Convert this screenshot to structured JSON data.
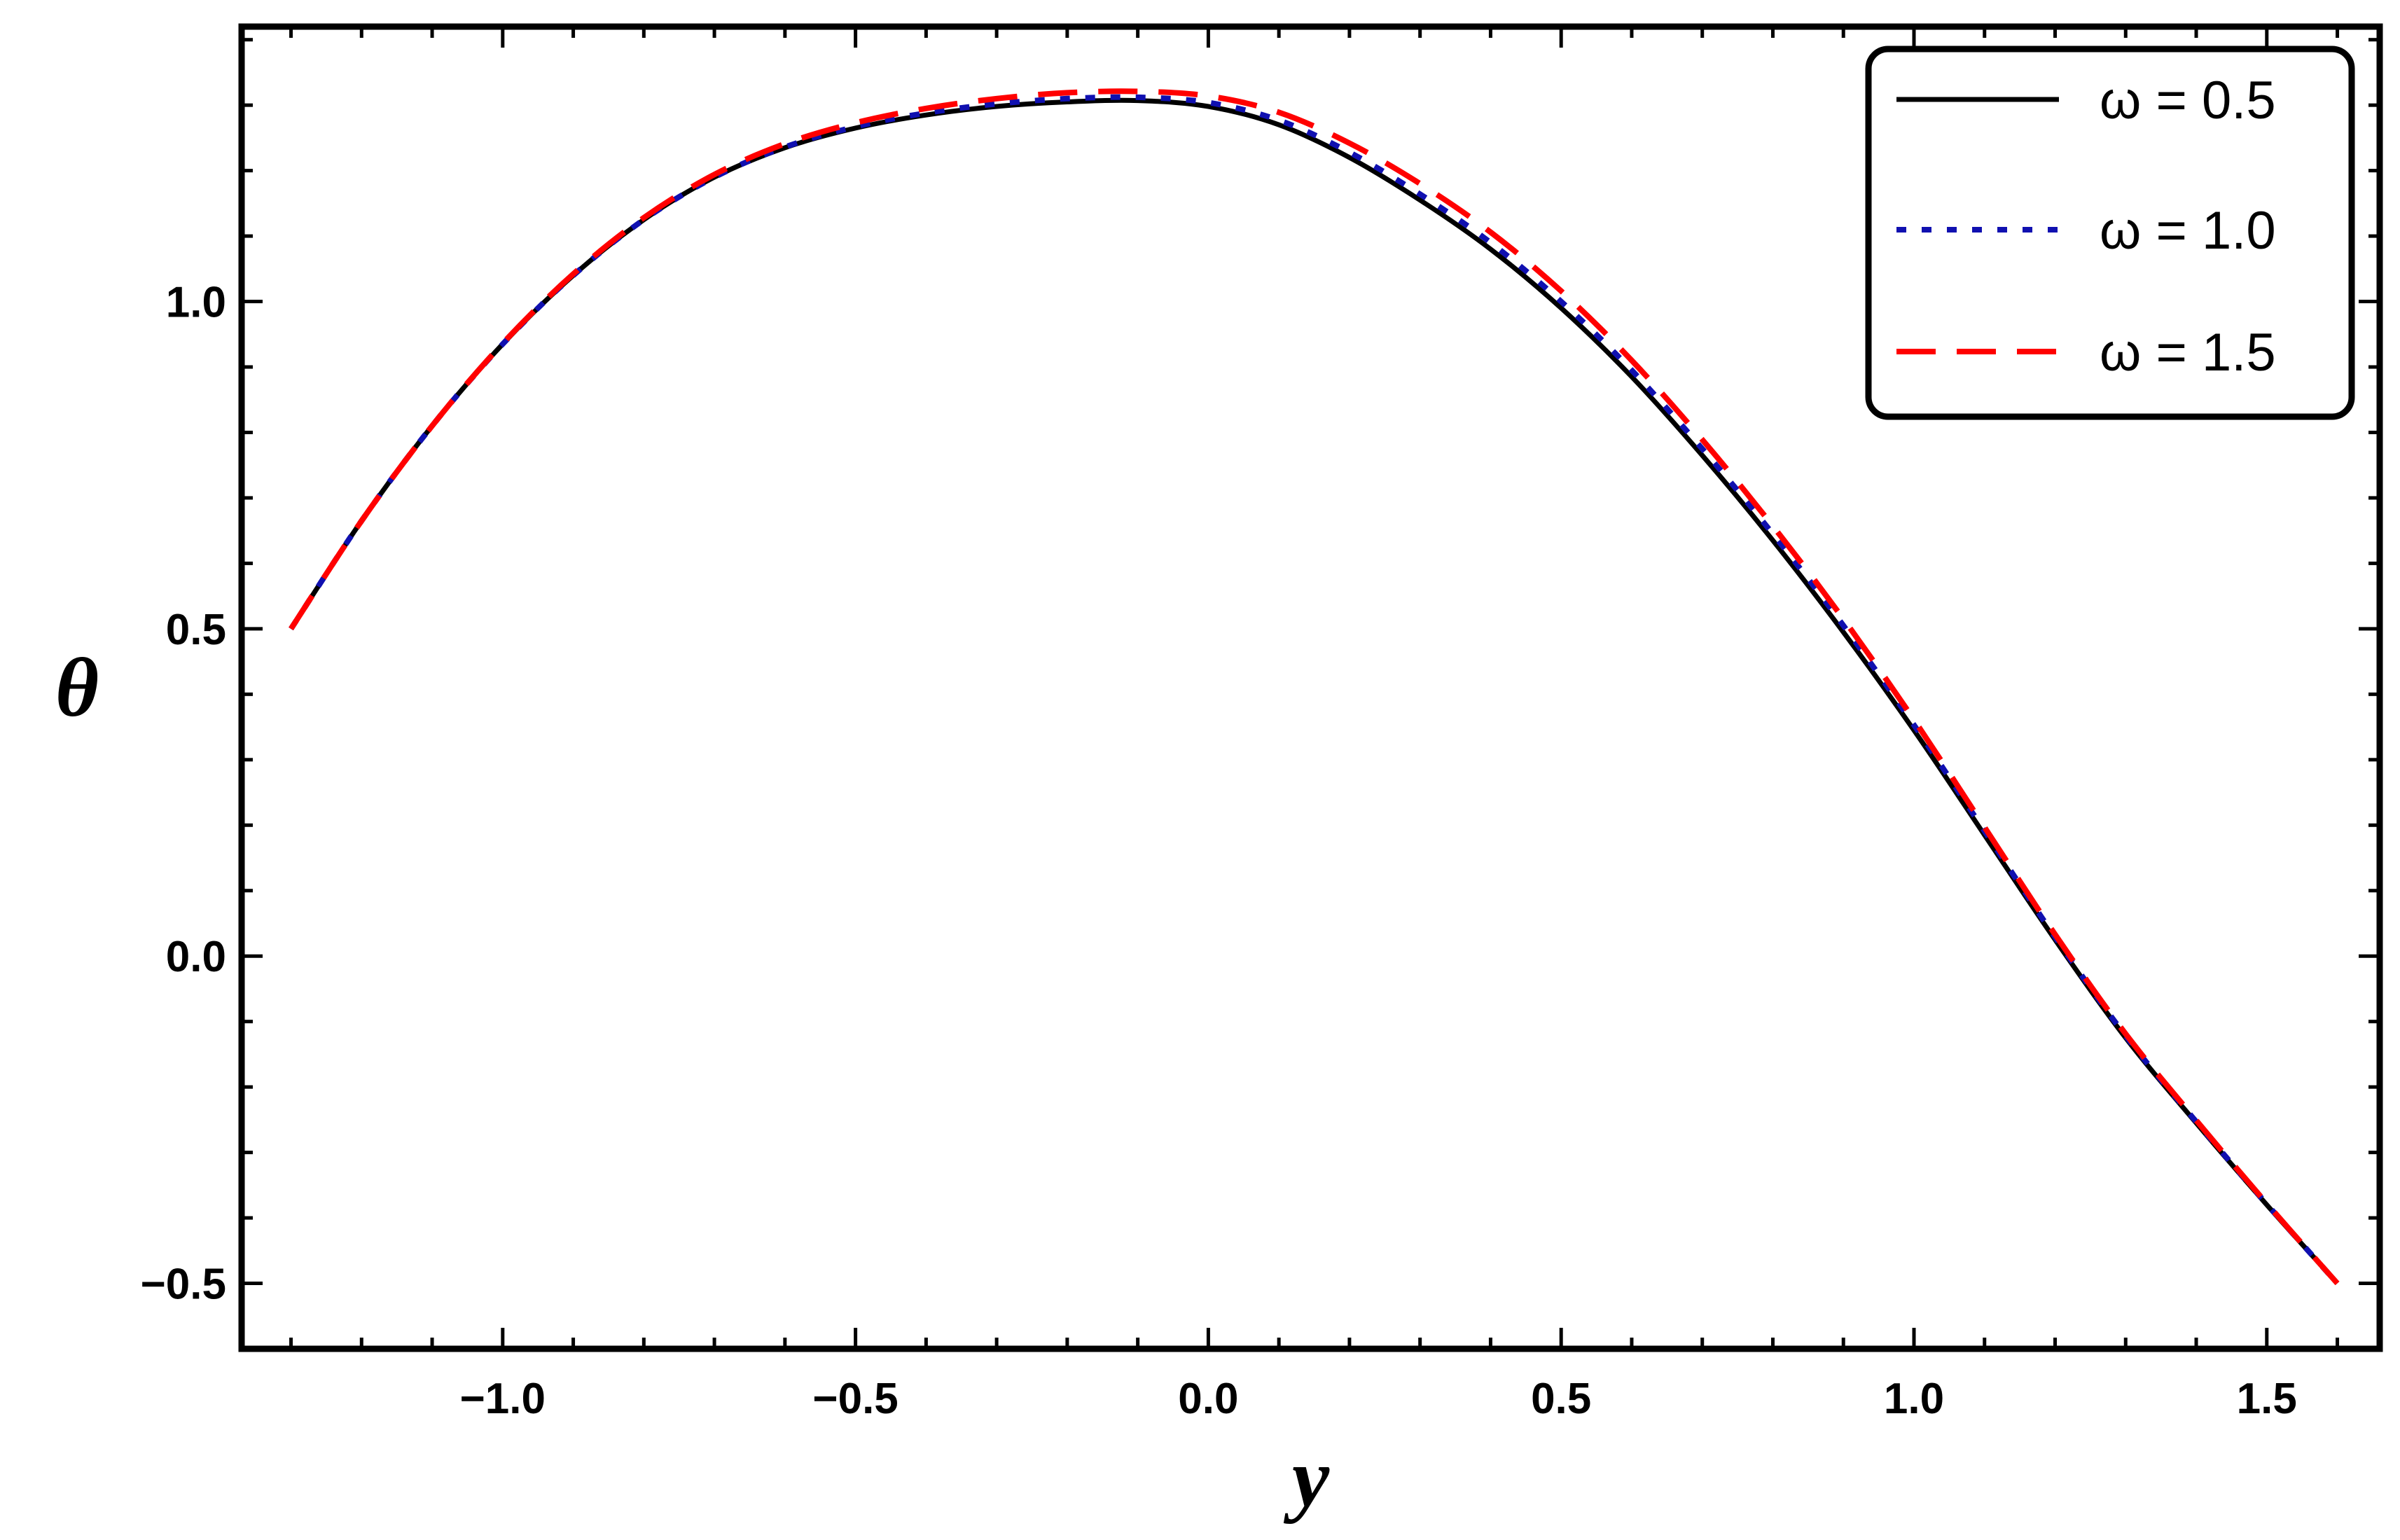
{
  "chart_data": {
    "type": "line",
    "title": "",
    "xlabel": "y",
    "ylabel": "θ",
    "xlim": [
      -1.37,
      1.66
    ],
    "ylim": [
      -0.6,
      1.42
    ],
    "x_ticks": [
      -1.0,
      -0.5,
      0.0,
      0.5,
      1.0,
      1.5
    ],
    "x_tick_labels": [
      "−1.0",
      "−0.5",
      "0.0",
      "0.5",
      "1.0",
      "1.5"
    ],
    "y_ticks": [
      -0.5,
      0.0,
      0.5,
      1.0
    ],
    "y_tick_labels": [
      "−0.5",
      "0.0",
      "0.5",
      "1.0"
    ],
    "x_minor_step": 0.1,
    "y_minor_step": 0.1,
    "grid": false,
    "legend_position": "top-right",
    "series": [
      {
        "name": "ω = 0.5",
        "color": "#000000",
        "style": "solid",
        "x": [
          -1.3,
          -1.2,
          -1.1,
          -1.0,
          -0.9,
          -0.8,
          -0.7,
          -0.6,
          -0.5,
          -0.4,
          -0.3,
          -0.2,
          -0.1,
          0.0,
          0.1,
          0.2,
          0.3,
          0.4,
          0.5,
          0.6,
          0.7,
          0.8,
          0.9,
          1.0,
          1.1,
          1.2,
          1.3,
          1.4,
          1.5,
          1.6
        ],
        "y": [
          0.5,
          0.665,
          0.81,
          0.935,
          1.04,
          1.125,
          1.19,
          1.235,
          1.265,
          1.285,
          1.298,
          1.305,
          1.307,
          1.298,
          1.27,
          1.22,
          1.155,
          1.08,
          0.99,
          0.885,
          0.765,
          0.635,
          0.495,
          0.345,
          0.185,
          0.025,
          -0.125,
          -0.255,
          -0.38,
          -0.5
        ]
      },
      {
        "name": "ω = 1.0",
        "color": "#1010b0",
        "style": "dotted",
        "x": [
          -1.3,
          -1.2,
          -1.1,
          -1.0,
          -0.9,
          -0.8,
          -0.7,
          -0.6,
          -0.5,
          -0.4,
          -0.3,
          -0.2,
          -0.1,
          0.0,
          0.1,
          0.2,
          0.3,
          0.4,
          0.5,
          0.6,
          0.7,
          0.8,
          0.9,
          1.0,
          1.1,
          1.2,
          1.3,
          1.4,
          1.5,
          1.6
        ],
        "y": [
          0.5,
          0.665,
          0.81,
          0.935,
          1.04,
          1.125,
          1.19,
          1.236,
          1.267,
          1.288,
          1.302,
          1.31,
          1.312,
          1.304,
          1.277,
          1.228,
          1.164,
          1.09,
          1.0,
          0.895,
          0.775,
          0.645,
          0.505,
          0.353,
          0.191,
          0.029,
          -0.122,
          -0.253,
          -0.379,
          -0.5
        ]
      },
      {
        "name": "ω = 1.5",
        "color": "#ff0000",
        "style": "dashed",
        "x": [
          -1.3,
          -1.2,
          -1.1,
          -1.0,
          -0.9,
          -0.8,
          -0.7,
          -0.6,
          -0.5,
          -0.4,
          -0.3,
          -0.2,
          -0.1,
          0.0,
          0.1,
          0.2,
          0.3,
          0.4,
          0.5,
          0.6,
          0.7,
          0.8,
          0.9,
          1.0,
          1.1,
          1.2,
          1.3,
          1.4,
          1.5,
          1.6
        ],
        "y": [
          0.5,
          0.665,
          0.81,
          0.936,
          1.042,
          1.128,
          1.194,
          1.241,
          1.273,
          1.295,
          1.31,
          1.319,
          1.321,
          1.314,
          1.289,
          1.242,
          1.18,
          1.106,
          1.016,
          0.91,
          0.789,
          0.657,
          0.515,
          0.361,
          0.197,
          0.033,
          -0.119,
          -0.251,
          -0.378,
          -0.5
        ]
      }
    ]
  }
}
